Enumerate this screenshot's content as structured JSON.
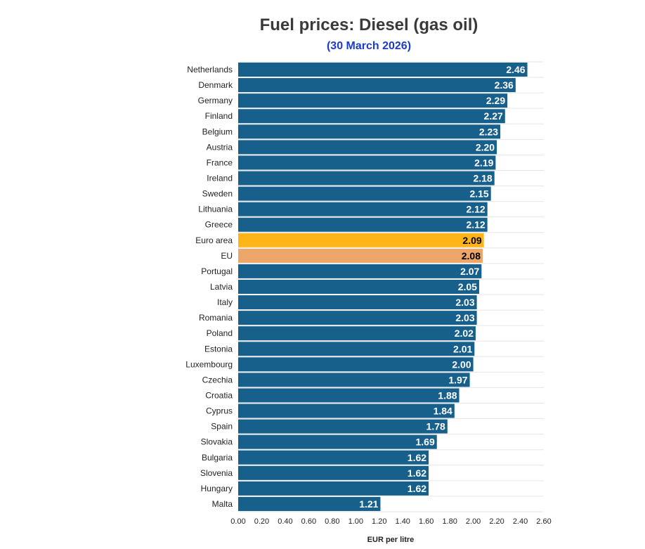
{
  "chart_data": {
    "type": "bar",
    "orientation": "horizontal",
    "title": "Fuel prices: Diesel (gas oil)",
    "subtitle": "(30 March 2026)",
    "xlabel": "EUR per litre",
    "ylabel": "",
    "xlim": [
      0,
      2.6
    ],
    "x_ticks": [
      "0.00",
      "0.20",
      "0.40",
      "0.60",
      "0.80",
      "1.00",
      "1.20",
      "1.40",
      "1.60",
      "1.80",
      "2.00",
      "2.20",
      "2.40",
      "2.60"
    ],
    "grid": true,
    "categories": [
      "Netherlands",
      "Denmark",
      "Germany",
      "Finland",
      "Belgium",
      "Austria",
      "France",
      "Ireland",
      "Sweden",
      "Lithuania",
      "Greece",
      "Euro area",
      "EU",
      "Portugal",
      "Latvia",
      "Italy",
      "Romania",
      "Poland",
      "Estonia",
      "Luxembourg",
      "Czechia",
      "Croatia",
      "Cyprus",
      "Spain",
      "Slovakia",
      "Bulgaria",
      "Slovenia",
      "Hungary",
      "Malta"
    ],
    "values": [
      2.46,
      2.36,
      2.29,
      2.27,
      2.23,
      2.2,
      2.19,
      2.18,
      2.15,
      2.12,
      2.12,
      2.09,
      2.08,
      2.07,
      2.05,
      2.03,
      2.03,
      2.02,
      2.01,
      2.0,
      1.97,
      1.88,
      1.84,
      1.78,
      1.69,
      1.62,
      1.62,
      1.62,
      1.21
    ],
    "colors": {
      "default": "#17608b",
      "highlight": {
        "Euro area": "#fdb416",
        "EU": "#eca66a"
      },
      "label_default": "#ffffff",
      "label_highlight": "#000000"
    }
  }
}
